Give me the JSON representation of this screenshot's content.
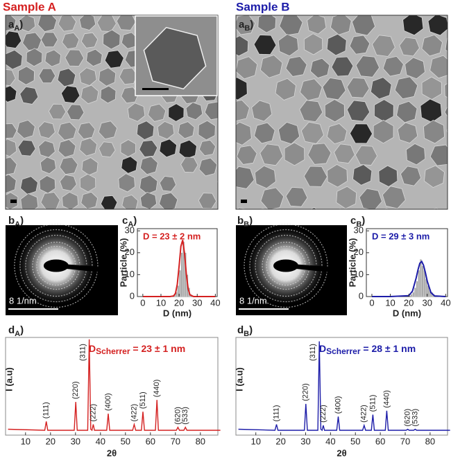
{
  "figure": {
    "samples": [
      {
        "title": "Sample A",
        "color": "#d42020"
      },
      {
        "title": "Sample B",
        "color": "#1c1ca8"
      }
    ],
    "panels": [
      {
        "letter": "a",
        "sub": "A",
        "close": ")"
      },
      {
        "letter": "b",
        "sub": "A",
        "close": ")"
      },
      {
        "letter": "c",
        "sub": "A",
        "close": ")"
      },
      {
        "letter": "d",
        "sub": "A",
        "close": ")"
      },
      {
        "letter": "a",
        "sub": "B",
        "close": ")"
      },
      {
        "letter": "b",
        "sub": "B",
        "close": ")"
      },
      {
        "letter": "c",
        "sub": "B",
        "close": ")"
      },
      {
        "letter": "d",
        "sub": "B",
        "close": ")"
      }
    ],
    "scale_bars": [
      "8 1/nm",
      "8 1/nm"
    ]
  },
  "chart_data": [
    {
      "type": "histogram",
      "xlabel": "D (nm)",
      "ylabel": "Particle (%)",
      "annotation": "D = 23 ± 2 nm",
      "bins": [
        17,
        18,
        19,
        20,
        21,
        22,
        23,
        24,
        25,
        26,
        27
      ],
      "values": [
        1,
        2,
        5,
        12,
        20,
        25,
        20,
        10,
        4,
        1
      ],
      "color": "#a8a8a8",
      "fit": {
        "x": [
          0,
          10,
          15,
          17,
          18,
          19,
          20,
          21,
          22,
          23,
          24,
          25,
          26,
          28,
          30,
          40
        ],
        "values": [
          0,
          0,
          0,
          0.3,
          1.5,
          5.6,
          13.8,
          22.9,
          25.8,
          19.6,
          10.1,
          3.5,
          0.8,
          0,
          0,
          0
        ],
        "color": "#d42020"
      },
      "xlim": [
        -3,
        41
      ],
      "ylim": [
        0,
        31
      ],
      "xticks": [
        0,
        10,
        20,
        30,
        40
      ],
      "yticks": [
        0,
        10,
        20,
        30
      ]
    },
    {
      "type": "histogram",
      "xlabel": "D (nm)",
      "ylabel": "Particle (%)",
      "annotation": "D = 29 ± 3 nm",
      "bins": [
        21,
        22,
        23,
        24,
        25,
        26,
        27,
        28,
        29,
        30,
        31,
        32,
        33,
        34
      ],
      "values": [
        1,
        2,
        4,
        7,
        12,
        17,
        14,
        12,
        8,
        5,
        3,
        2,
        1
      ],
      "color": "#a8a8a8",
      "fit": {
        "x": [
          0,
          10,
          20,
          22,
          24,
          25,
          26,
          27,
          28,
          29,
          30,
          32,
          34,
          40
        ],
        "values": [
          0,
          0,
          0.4,
          2.5,
          8.5,
          12.3,
          15.2,
          16,
          14.3,
          10.9,
          7,
          1.8,
          0.3,
          0
        ],
        "color": "#1c1ca8"
      },
      "xlim": [
        -3,
        41
      ],
      "ylim": [
        0,
        31
      ],
      "xticks": [
        0,
        10,
        20,
        30,
        40
      ],
      "yticks": [
        0,
        10,
        20,
        30
      ]
    },
    {
      "type": "line",
      "xlabel": "2θ",
      "ylabel": "I (a.u)",
      "annotation": {
        "main": "D",
        "sub": "Scherrer",
        "rest": " = 23 ± 1 nm"
      },
      "color": "#d42020",
      "x": [
        3,
        17.7,
        18.3,
        18.9,
        29.5,
        30.1,
        30.7,
        34.9,
        35.5,
        36.1,
        36.6,
        37.1,
        37.6,
        42.5,
        43.1,
        43.7,
        52.9,
        53.5,
        54.1,
        56.4,
        57.0,
        57.6,
        62.0,
        62.6,
        63.2,
        70.4,
        71.0,
        71.6,
        73.4,
        74.0,
        74.6,
        88
      ],
      "values": [
        6,
        5,
        14,
        5,
        5,
        34,
        5,
        5,
        98,
        6,
        5,
        11,
        5,
        5,
        22,
        5,
        5,
        11,
        5,
        5,
        24,
        5,
        5,
        36,
        5,
        5,
        8,
        5,
        5,
        8,
        5,
        5
      ],
      "peak_labels": [
        {
          "text": "(111)",
          "x": 18.3
        },
        {
          "text": "(220)",
          "x": 30.1
        },
        {
          "text": "(311)",
          "x": 35.5
        },
        {
          "text": "(222)",
          "x": 37.1
        },
        {
          "text": "(400)",
          "x": 43.1
        },
        {
          "text": "(422)",
          "x": 53.5
        },
        {
          "text": "(511)",
          "x": 57.0
        },
        {
          "text": "(440)",
          "x": 62.6
        },
        {
          "text": "(620)",
          "x": 71.0
        },
        {
          "text": "(533)",
          "x": 74.0
        }
      ],
      "xlim": [
        2,
        87
      ],
      "ylim": [
        0,
        100
      ],
      "xticks": [
        10,
        20,
        30,
        40,
        50,
        60,
        70,
        80
      ]
    },
    {
      "type": "line",
      "xlabel": "2θ",
      "ylabel": "I (a.u)",
      "annotation": {
        "main": "D",
        "sub": "Scherrer",
        "rest": " = 28 ± 1 nm"
      },
      "color": "#1c1ca8",
      "x": [
        3,
        17.7,
        18.3,
        18.9,
        29.5,
        30.1,
        30.7,
        34.9,
        35.5,
        36.1,
        36.6,
        37.1,
        37.6,
        42.5,
        43.1,
        43.7,
        52.9,
        53.5,
        54.1,
        56.4,
        57.0,
        57.6,
        62.0,
        62.6,
        63.2,
        70.4,
        71.0,
        71.6,
        73.4,
        74.0,
        74.6,
        88
      ],
      "values": [
        6,
        5,
        11,
        5,
        5,
        32,
        5,
        5,
        96,
        6,
        5,
        10,
        5,
        5,
        19,
        5,
        5,
        10,
        5,
        5,
        21,
        5,
        5,
        25,
        5,
        5,
        6,
        5,
        5,
        6,
        5,
        5
      ],
      "peak_labels": [
        {
          "text": "(111)",
          "x": 18.3
        },
        {
          "text": "(220)",
          "x": 30.1
        },
        {
          "text": "(311)",
          "x": 35.5
        },
        {
          "text": "(222)",
          "x": 37.1
        },
        {
          "text": "(400)",
          "x": 43.1
        },
        {
          "text": "(422)",
          "x": 53.5
        },
        {
          "text": "(511)",
          "x": 57.0
        },
        {
          "text": "(440)",
          "x": 62.6
        },
        {
          "text": "(620)",
          "x": 71.0
        },
        {
          "text": "(533)",
          "x": 74.0
        }
      ],
      "xlim": [
        2,
        87
      ],
      "ylim": [
        0,
        100
      ],
      "xticks": [
        10,
        20,
        30,
        40,
        50,
        60,
        70,
        80
      ]
    }
  ]
}
